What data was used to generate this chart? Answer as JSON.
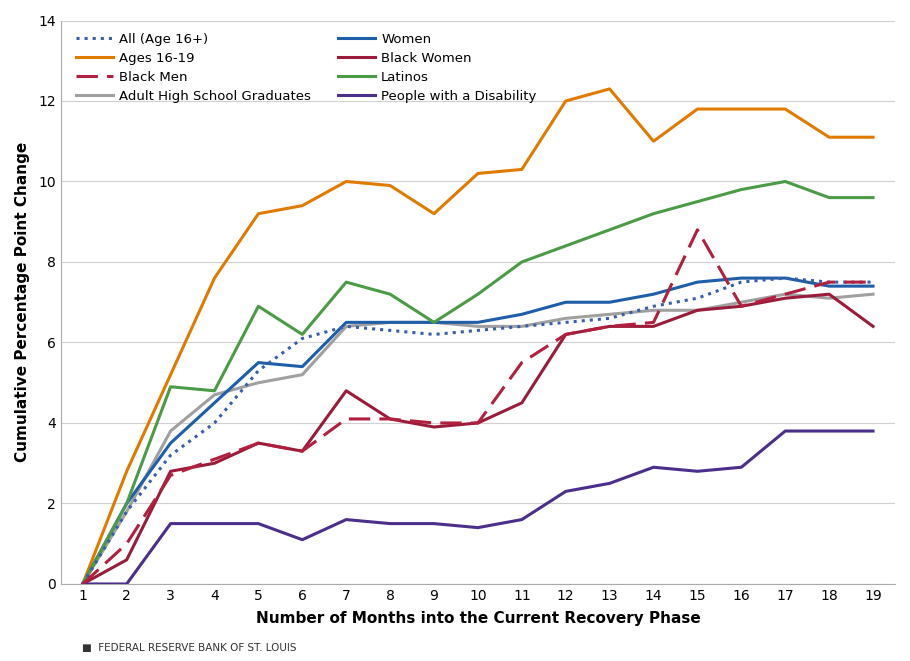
{
  "x": [
    1,
    2,
    3,
    4,
    5,
    6,
    7,
    8,
    9,
    10,
    11,
    12,
    13,
    14,
    15,
    16,
    17,
    18,
    19
  ],
  "series": [
    {
      "name": "All (Age 16+)",
      "values": [
        0,
        1.8,
        3.2,
        4.0,
        5.3,
        6.1,
        6.4,
        6.3,
        6.2,
        6.3,
        6.4,
        6.5,
        6.6,
        6.9,
        7.1,
        7.5,
        7.6,
        7.5,
        7.5
      ],
      "color": "#3A5EA8",
      "linestyle": "dotted",
      "linewidth": 2.2
    },
    {
      "name": "Ages 16-19",
      "values": [
        0,
        2.8,
        5.2,
        7.6,
        9.2,
        9.4,
        10.0,
        9.9,
        9.2,
        10.2,
        10.3,
        12.0,
        12.3,
        11.0,
        11.8,
        11.8,
        11.8,
        11.1,
        11.1
      ],
      "color": "#E07B00",
      "linestyle": "solid",
      "linewidth": 2.2
    },
    {
      "name": "Black Men",
      "values": [
        0,
        1.0,
        2.7,
        3.1,
        3.5,
        3.3,
        4.1,
        4.1,
        4.0,
        4.0,
        5.5,
        6.2,
        6.4,
        6.5,
        8.8,
        6.9,
        7.2,
        7.5,
        7.5
      ],
      "color": "#B22040",
      "linestyle": "dashed",
      "linewidth": 2.2
    },
    {
      "name": "Adult High School Graduates",
      "values": [
        0,
        1.8,
        3.8,
        4.7,
        5.0,
        5.2,
        6.4,
        6.5,
        6.5,
        6.4,
        6.4,
        6.6,
        6.7,
        6.8,
        6.8,
        7.0,
        7.2,
        7.1,
        7.2
      ],
      "color": "#A0A0A0",
      "linestyle": "solid",
      "linewidth": 2.2
    },
    {
      "name": "Women",
      "values": [
        0,
        2.0,
        3.5,
        4.5,
        5.5,
        5.4,
        6.5,
        6.5,
        6.5,
        6.5,
        6.7,
        7.0,
        7.0,
        7.2,
        7.5,
        7.6,
        7.6,
        7.4,
        7.4
      ],
      "color": "#1F5EA8",
      "linestyle": "solid",
      "linewidth": 2.2
    },
    {
      "name": "Black Women",
      "values": [
        0,
        0.6,
        2.8,
        3.0,
        3.5,
        3.3,
        4.8,
        4.1,
        3.9,
        4.0,
        4.5,
        6.2,
        6.4,
        6.4,
        6.8,
        6.9,
        7.1,
        7.2,
        6.4
      ],
      "color": "#9B1C3A",
      "linestyle": "solid",
      "linewidth": 2.2
    },
    {
      "name": "Latinos",
      "values": [
        0,
        2.0,
        4.9,
        4.8,
        6.9,
        6.2,
        7.5,
        7.2,
        6.5,
        7.2,
        8.0,
        8.4,
        8.8,
        9.2,
        9.5,
        9.8,
        10.0,
        9.6,
        9.6
      ],
      "color": "#4B9B47",
      "linestyle": "solid",
      "linewidth": 2.2
    },
    {
      "name": "People with a Disability",
      "values": [
        0,
        0.0,
        1.5,
        1.5,
        1.5,
        1.1,
        1.6,
        1.5,
        1.5,
        1.4,
        1.6,
        2.3,
        2.5,
        2.9,
        2.8,
        2.9,
        3.8,
        3.8,
        3.8
      ],
      "color": "#4B2F8A",
      "linestyle": "solid",
      "linewidth": 2.2
    }
  ],
  "legend_order": [
    "All (Age 16+)",
    "Ages 16-19",
    "Black Men",
    "Adult High School Graduates",
    "Women",
    "Black Women",
    "Latinos",
    "People with a Disability"
  ],
  "xlabel": "Number of Months into the Current Recovery Phase",
  "ylabel": "Cumulative Percentage Point Change",
  "ylim": [
    0,
    14
  ],
  "xlim": [
    1,
    19
  ],
  "yticks": [
    0,
    2,
    4,
    6,
    8,
    10,
    12,
    14
  ],
  "xticks": [
    1,
    2,
    3,
    4,
    5,
    6,
    7,
    8,
    9,
    10,
    11,
    12,
    13,
    14,
    15,
    16,
    17,
    18,
    19
  ],
  "footer": "FEDERAL RESERVE BANK OF ST. LOUIS",
  "background_color": "#FFFFFF"
}
